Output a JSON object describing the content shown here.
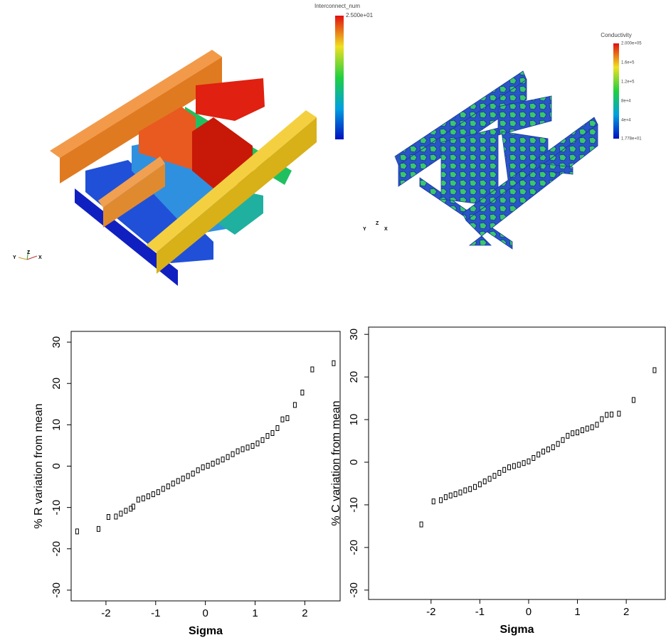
{
  "renders": [
    {
      "colorbar": {
        "title": "Interconnect_num",
        "labels": [
          "2.500e+01"
        ]
      },
      "axes": [
        "Y",
        "Z",
        "X"
      ]
    },
    {
      "colorbar": {
        "title": "Conductivity",
        "labels": [
          "2.000e+05",
          "1.6e+5",
          "1.2e+5",
          "8e+4",
          "4e+4",
          "1.778e+01"
        ]
      },
      "axes": [
        "Y",
        "Z",
        "X"
      ]
    }
  ],
  "chart_data": [
    {
      "type": "scatter",
      "xlabel": "Sigma",
      "ylabel": "% R variation from mean",
      "xlim": [
        -2.7,
        2.71
      ],
      "ylim": [
        -32.6,
        32.6
      ],
      "xticks": [
        -2,
        -1,
        0,
        1,
        2
      ],
      "yticks": [
        -30,
        -20,
        -10,
        0,
        10,
        20,
        30
      ],
      "x": [
        -2.58,
        -2.15,
        -1.95,
        -1.8,
        -1.7,
        -1.6,
        -1.5,
        -1.45,
        -1.35,
        -1.25,
        -1.15,
        -1.05,
        -0.95,
        -0.85,
        -0.75,
        -0.65,
        -0.55,
        -0.45,
        -0.35,
        -0.25,
        -0.15,
        -0.05,
        0.05,
        0.15,
        0.25,
        0.35,
        0.45,
        0.55,
        0.65,
        0.75,
        0.85,
        0.95,
        1.05,
        1.15,
        1.25,
        1.35,
        1.45,
        1.55,
        1.65,
        1.8,
        1.95,
        2.15,
        2.58
      ],
      "values": [
        -15.8,
        -15.2,
        -12.3,
        -12.2,
        -11.5,
        -10.8,
        -10.3,
        -9.8,
        -8.1,
        -7.8,
        -7.3,
        -6.8,
        -6.3,
        -5.5,
        -4.9,
        -4.2,
        -3.6,
        -3.0,
        -2.4,
        -1.8,
        -1.0,
        -0.3,
        0.1,
        0.6,
        1.1,
        1.6,
        2.2,
        2.9,
        3.6,
        4.1,
        4.5,
        4.9,
        5.5,
        6.3,
        7.3,
        8.0,
        9.2,
        11.3,
        11.6,
        14.8,
        17.8,
        23.4,
        24.9
      ]
    },
    {
      "type": "scatter",
      "xlabel": "Sigma",
      "ylabel": "% C variation from mean",
      "xlim": [
        -3.28,
        2.8
      ],
      "ylim": [
        -32.2,
        31.7
      ],
      "xticks": [
        -2,
        -1,
        0,
        1,
        2
      ],
      "yticks": [
        -30,
        -20,
        -10,
        0,
        10,
        20,
        30
      ],
      "x": [
        -2.2,
        -1.95,
        -1.8,
        -1.7,
        -1.6,
        -1.5,
        -1.4,
        -1.3,
        -1.2,
        -1.1,
        -1.0,
        -0.9,
        -0.8,
        -0.7,
        -0.6,
        -0.5,
        -0.4,
        -0.3,
        -0.2,
        -0.1,
        0.0,
        0.1,
        0.2,
        0.3,
        0.4,
        0.5,
        0.6,
        0.7,
        0.8,
        0.9,
        1.0,
        1.1,
        1.2,
        1.3,
        1.4,
        1.5,
        1.6,
        1.7,
        1.85,
        2.15,
        2.58
      ],
      "values": [
        -14.6,
        -9.2,
        -8.9,
        -8.2,
        -7.8,
        -7.5,
        -7.1,
        -6.6,
        -6.3,
        -5.8,
        -5.2,
        -4.5,
        -3.9,
        -3.2,
        -2.5,
        -1.8,
        -1.2,
        -0.9,
        -0.6,
        -0.2,
        0.2,
        1.0,
        1.8,
        2.5,
        3.0,
        3.5,
        4.3,
        5.2,
        6.2,
        6.8,
        7.0,
        7.5,
        7.9,
        8.2,
        8.8,
        10.1,
        11.1,
        11.2,
        11.4,
        14.6,
        21.6
      ]
    }
  ]
}
